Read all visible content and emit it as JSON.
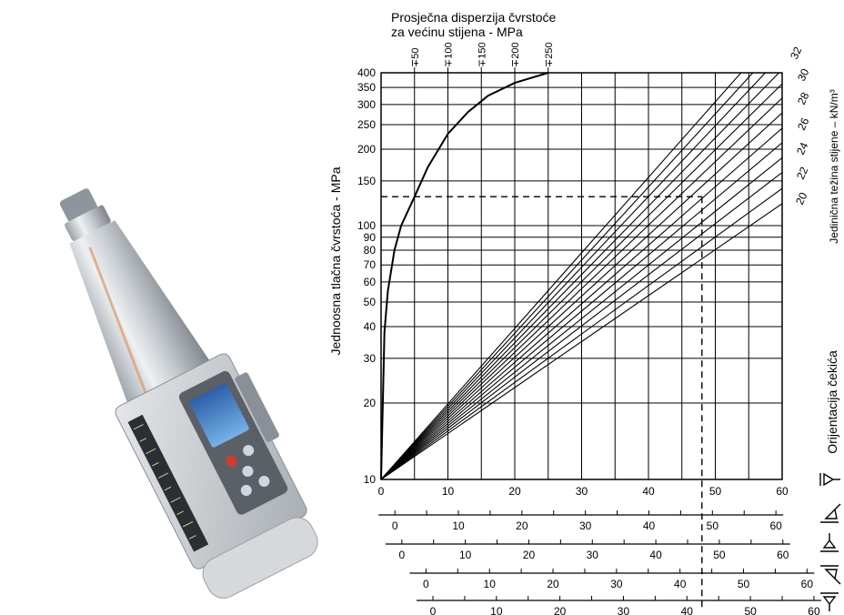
{
  "device": {
    "name": "Schmidt rebound hammer",
    "icon": "rebound-hammer-image"
  },
  "chart_data": {
    "type": "line",
    "title": "Prosječna disperzija čvrstoće\nza većinu stijena - MPa",
    "ylabel": "Jednoosna tlačna čvrstoća - MPa",
    "right_label": "Jedinična težina stijene – kN/m³",
    "orientation_label": "Orijentacija čekića",
    "x_scale": "linear",
    "y_scale": "log",
    "xlim": [
      0,
      60
    ],
    "ylim": [
      10,
      400
    ],
    "grid": true,
    "x_ticks": [
      0,
      10,
      20,
      30,
      40,
      50,
      60
    ],
    "y_ticks": [
      10,
      20,
      30,
      40,
      50,
      60,
      70,
      80,
      90,
      100,
      150,
      200,
      250,
      300,
      350,
      400
    ],
    "dispersion_labels": [
      "∓50",
      "∓100",
      "∓150",
      "∓200",
      "∓250"
    ],
    "dispersion_x": [
      5,
      10,
      15,
      20,
      25
    ],
    "dispersion_curve": {
      "x": [
        0,
        0.5,
        1,
        2,
        3,
        5,
        7,
        10,
        13,
        16,
        20,
        25
      ],
      "y": [
        10,
        38,
        55,
        80,
        100,
        130,
        170,
        230,
        280,
        325,
        365,
        400
      ]
    },
    "unit_weight_series": [
      {
        "name": "20",
        "y_at_x60": 122
      },
      {
        "name": "21",
        "y_at_x60": 140
      },
      {
        "name": "22",
        "y_at_x60": 162
      },
      {
        "name": "23",
        "y_at_x60": 185
      },
      {
        "name": "24",
        "y_at_x60": 212
      },
      {
        "name": "25",
        "y_at_x60": 242
      },
      {
        "name": "26",
        "y_at_x60": 278
      },
      {
        "name": "27",
        "y_at_x60": 318
      },
      {
        "name": "28",
        "y_at_x60": 362
      },
      {
        "name": "29",
        "y_at_x60": 412
      },
      {
        "name": "30",
        "y_at_x60": 470
      },
      {
        "name": "31",
        "y_at_x60": 535
      },
      {
        "name": "32",
        "y_at_x60": 610
      }
    ],
    "unit_weight_labels": [
      "20",
      "22",
      "24",
      "26",
      "28",
      "30",
      "32"
    ],
    "example": {
      "x": 48,
      "y": 130
    },
    "orientation_scales": [
      {
        "ticks": [
          "0",
          "10",
          "20",
          "30",
          "40",
          "50",
          "60"
        ],
        "shift": 4,
        "icon": "hammer-down-45-icon"
      },
      {
        "ticks": [
          "0",
          "10",
          "20",
          "30",
          "40",
          "50",
          "60"
        ],
        "shift": 6,
        "icon": "hammer-down-vertical-icon"
      },
      {
        "ticks": [
          "0",
          "10",
          "20",
          "30",
          "40",
          "50",
          "60"
        ],
        "shift": 13,
        "icon": "hammer-up-45-icon"
      },
      {
        "ticks": [
          "0",
          "10",
          "20",
          "30",
          "40",
          "50",
          "60"
        ],
        "shift": 15,
        "icon": "hammer-up-vertical-icon"
      }
    ],
    "horizontal_orientation_icon": "hammer-horizontal-icon"
  }
}
